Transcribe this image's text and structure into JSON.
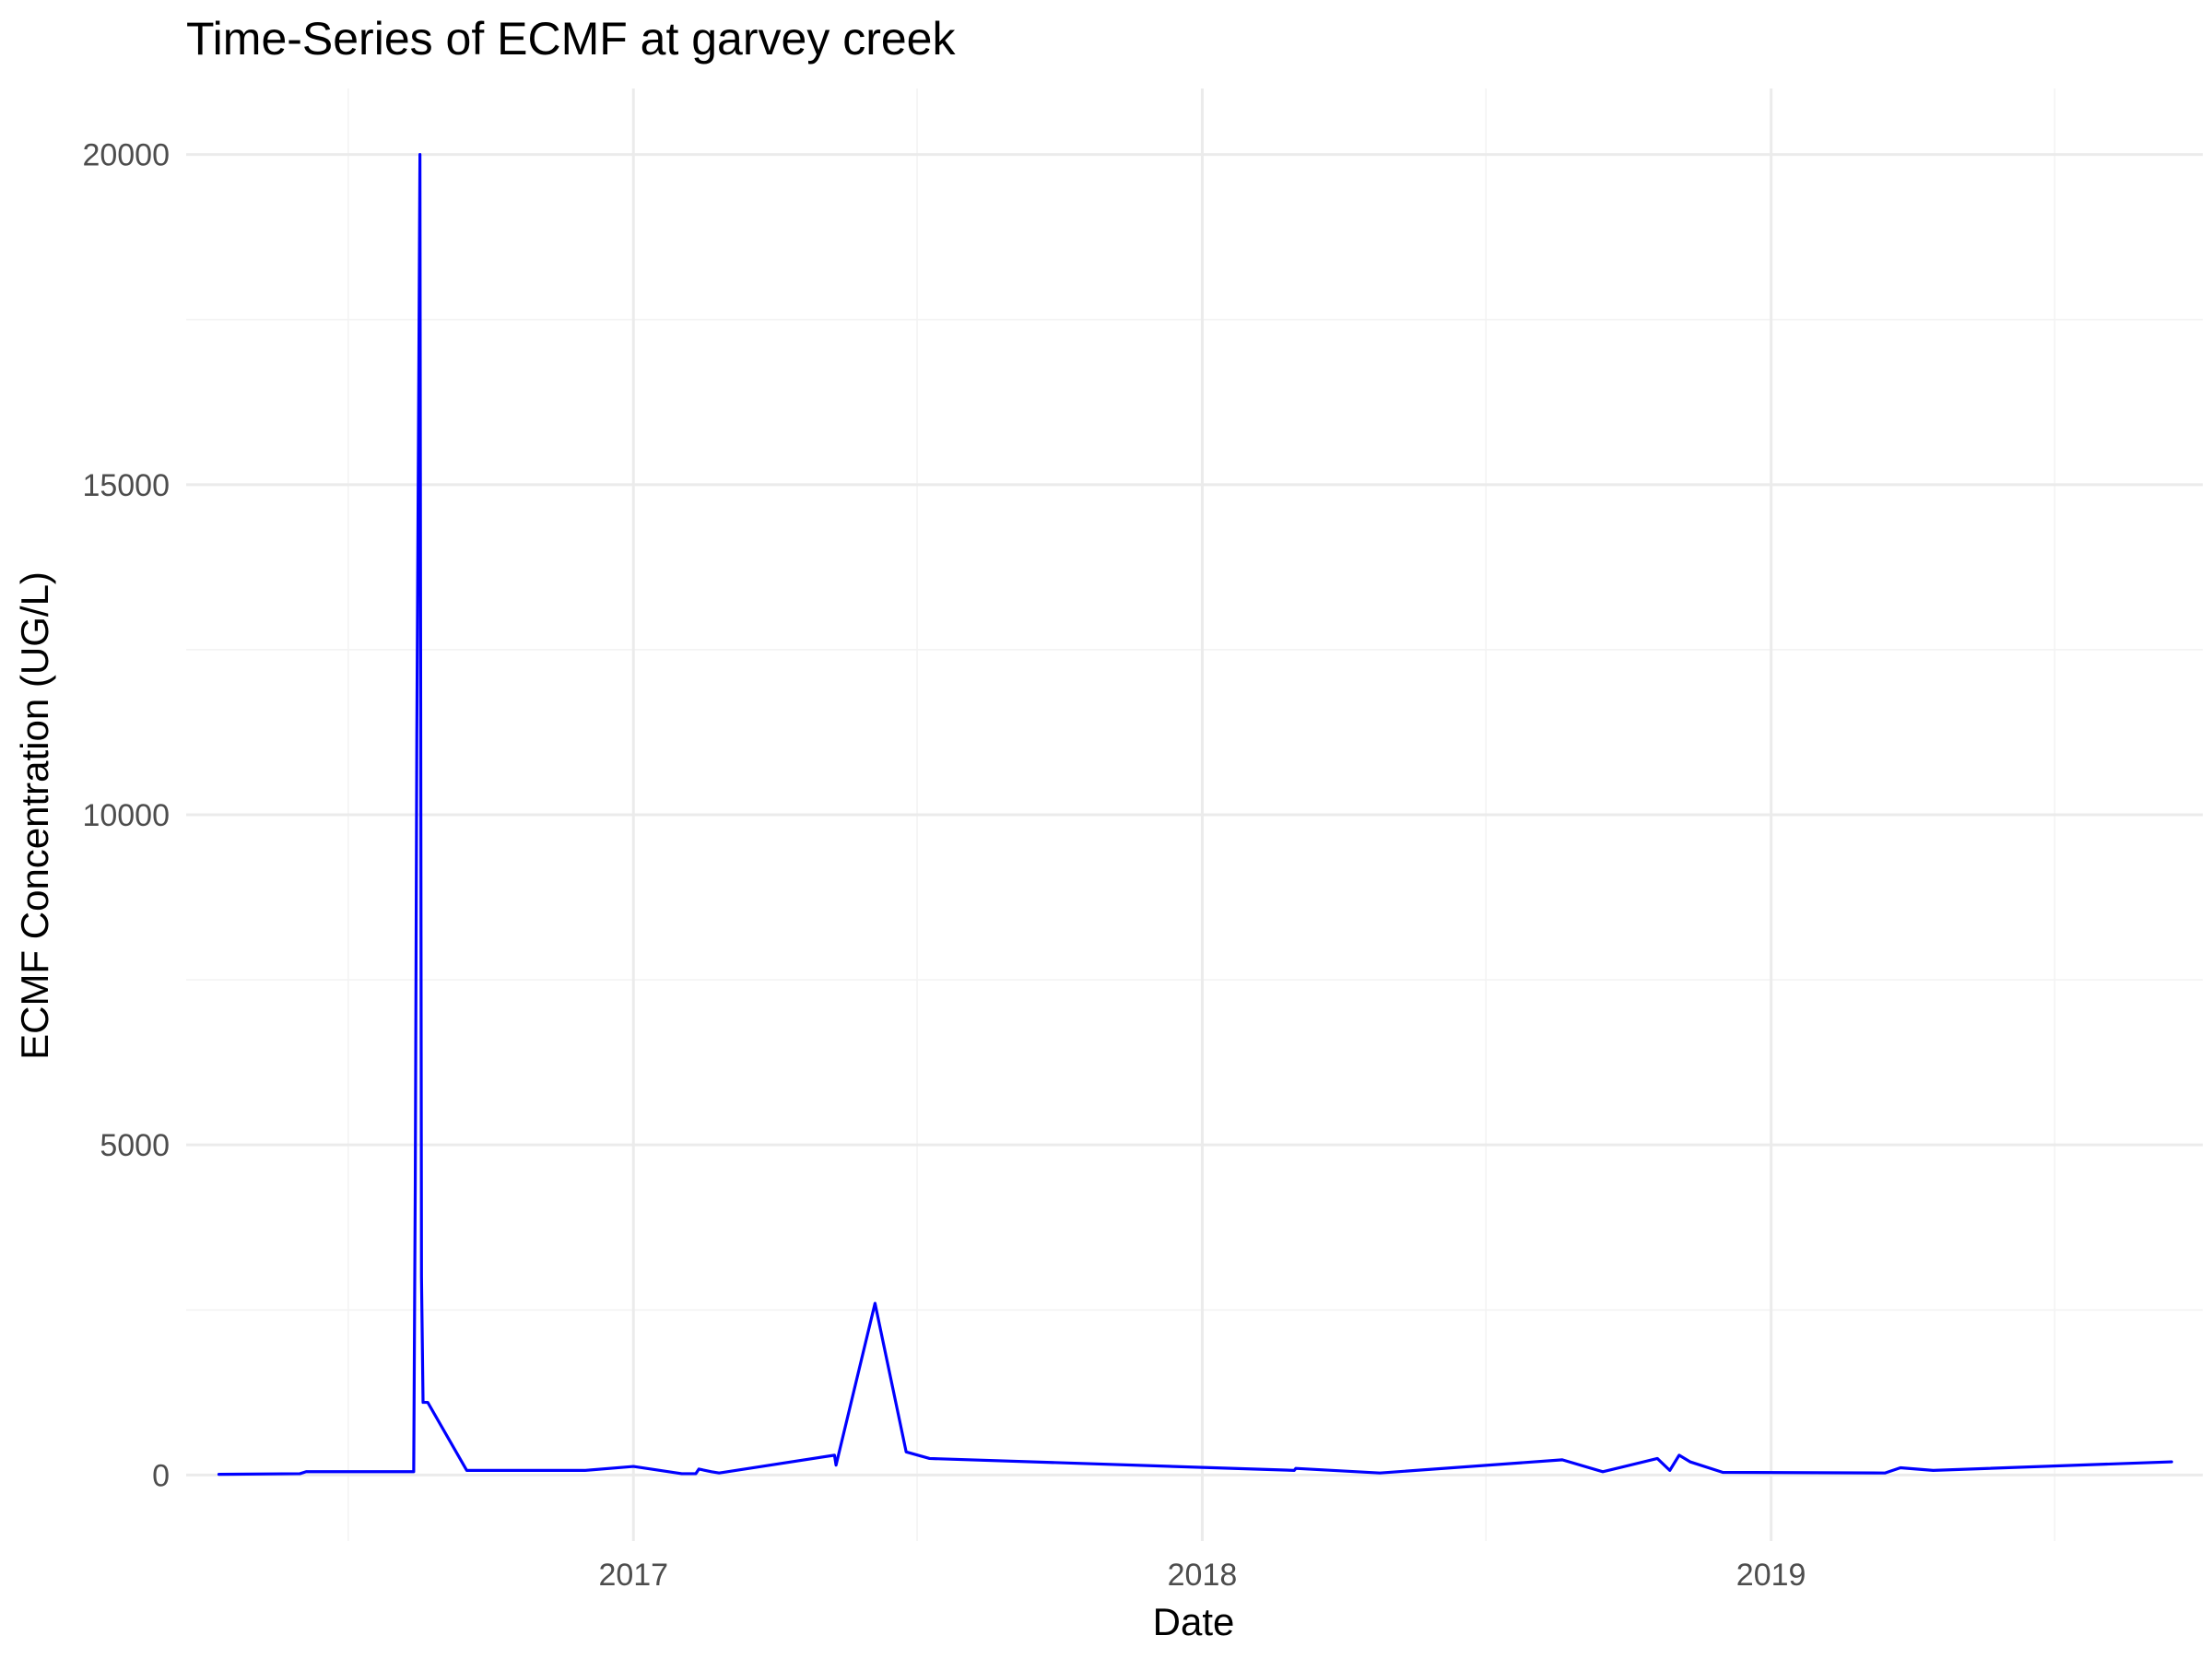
{
  "chart_data": {
    "type": "line",
    "title": "Time-Series of ECMF at garvey creek",
    "xlabel": "Date",
    "ylabel": "ECMF Concentration (UG/L)",
    "x_axis_type": "date",
    "xlim": [
      "2016-03-20",
      "2019-10-05"
    ],
    "ylim": [
      -1000,
      21000
    ],
    "x_ticks": [
      "2017-01-01",
      "2018-01-01",
      "2019-01-01"
    ],
    "x_tick_labels": [
      "2017",
      "2018",
      "2019"
    ],
    "x_minor_ticks": [
      "2016-07-02",
      "2017-07-02",
      "2018-07-02",
      "2019-07-02"
    ],
    "y_ticks": [
      0,
      5000,
      10000,
      15000,
      20000
    ],
    "y_tick_labels": [
      "0",
      "5000",
      "10000",
      "15000",
      "20000"
    ],
    "y_minor_ticks": [
      2500,
      7500,
      12500,
      17500
    ],
    "grid": true,
    "line_color": "#0000ff",
    "series": [
      {
        "x": [
          "2016-04-10",
          "2016-06-01",
          "2016-06-05",
          "2016-08-13",
          "2016-08-14",
          "2016-08-15",
          "2016-08-16",
          "2016-08-17",
          "2016-08-18",
          "2016-08-19",
          "2016-08-20",
          "2016-08-21",
          "2016-08-22",
          "2016-09-16",
          "2016-12-01",
          "2017-01-01",
          "2017-02-01",
          "2017-02-10",
          "2017-02-12",
          "2017-02-20",
          "2017-02-25",
          "2017-05-10",
          "2017-05-11",
          "2017-06-05",
          "2017-06-25",
          "2017-07-10",
          "2018-03-01",
          "2018-03-02",
          "2018-04-25",
          "2018-08-20",
          "2018-09-15",
          "2018-10-20",
          "2018-10-28",
          "2018-11-03",
          "2018-11-10",
          "2018-12-01",
          "2019-03-15",
          "2019-03-25",
          "2019-04-15",
          "2019-09-15"
        ],
        "y": [
          10,
          20,
          50,
          50,
          4400,
          11200,
          15500,
          20000,
          3000,
          1100,
          1100,
          1100,
          1100,
          70,
          70,
          130,
          20,
          20,
          90,
          50,
          30,
          300,
          150,
          2600,
          350,
          250,
          70,
          100,
          30,
          230,
          50,
          250,
          70,
          300,
          200,
          40,
          30,
          110,
          70,
          200
        ]
      }
    ]
  }
}
